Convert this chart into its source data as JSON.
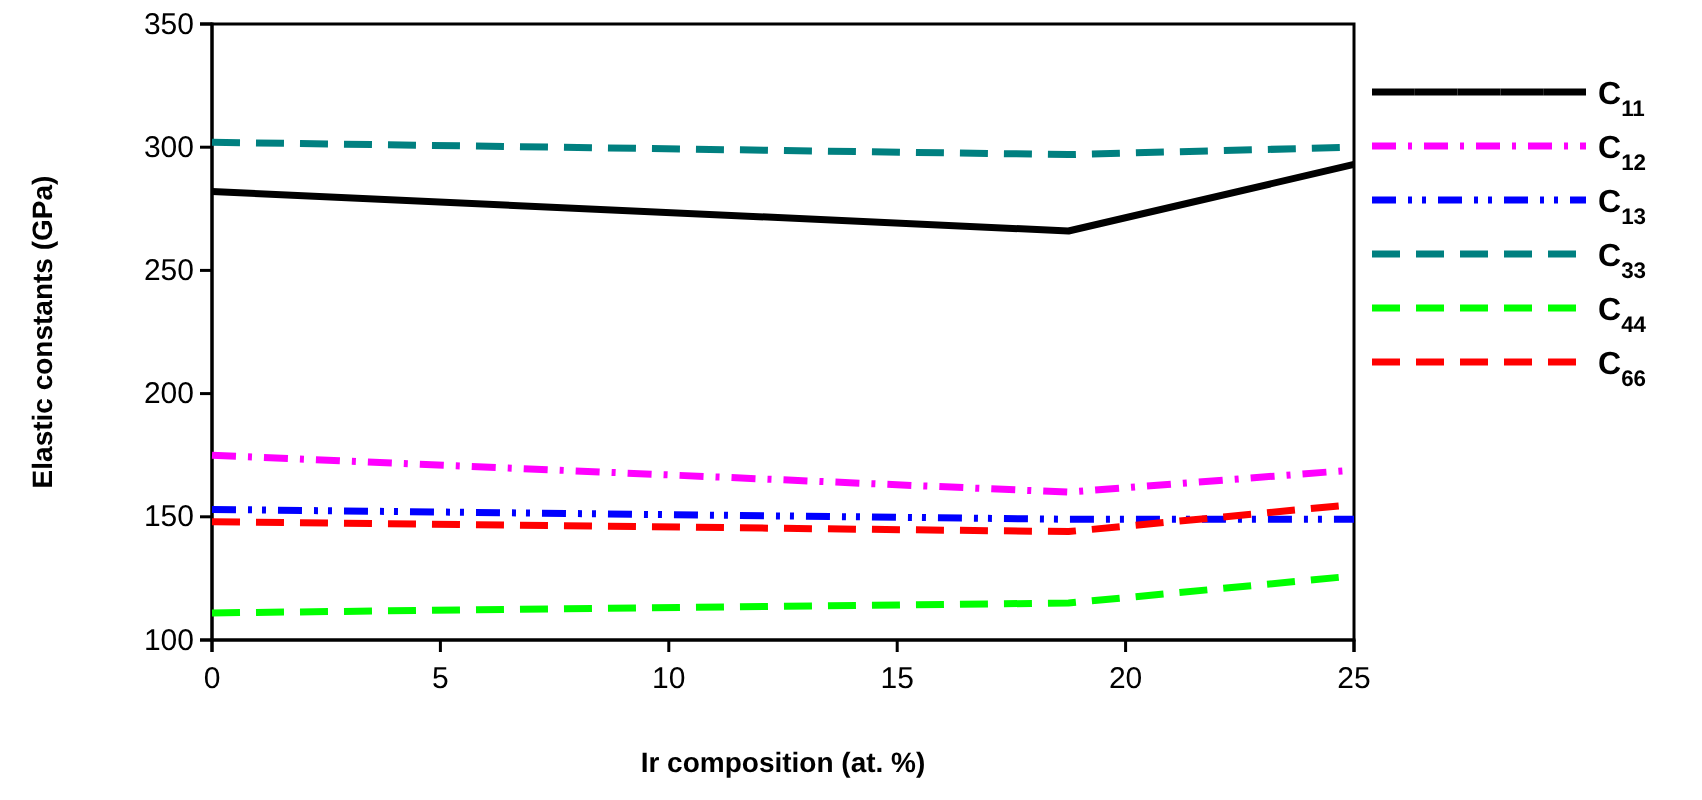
{
  "chart_data": {
    "type": "line",
    "xlabel": "Ir composition (at. %)",
    "ylabel": "Elastic constants (GPa)",
    "x": [
      0,
      18.75,
      25
    ],
    "series": [
      {
        "name": "C$_{11}$",
        "color": "#000000",
        "line_style": "solid",
        "values": [
          282,
          266,
          293
        ]
      },
      {
        "name": "C$_{12}$",
        "color": "#ff00ff",
        "line_style": "dashdot",
        "values": [
          175,
          160,
          169
        ]
      },
      {
        "name": "C$_{13}$",
        "color": "#0000ff",
        "line_style": "dashdotdot",
        "values": [
          153,
          149,
          149
        ]
      },
      {
        "name": "C$_{33}$",
        "color": "#008080",
        "line_style": "dashed",
        "values": [
          302,
          297,
          300
        ]
      },
      {
        "name": "C$_{44}$",
        "color": "#00ff00",
        "line_style": "dashed",
        "values": [
          111,
          115,
          126
        ]
      },
      {
        "name": "C$_{66}$",
        "color": "#ff0000",
        "line_style": "dashed",
        "values": [
          148,
          144,
          155
        ]
      }
    ],
    "xlim": [
      0,
      25
    ],
    "xticks": [
      0,
      5,
      10,
      15,
      20,
      25
    ],
    "ylim": [
      100,
      350
    ],
    "yticks": [
      100,
      150,
      200,
      250,
      300,
      350
    ],
    "grid": false,
    "legend": "right",
    "marker": "none"
  }
}
